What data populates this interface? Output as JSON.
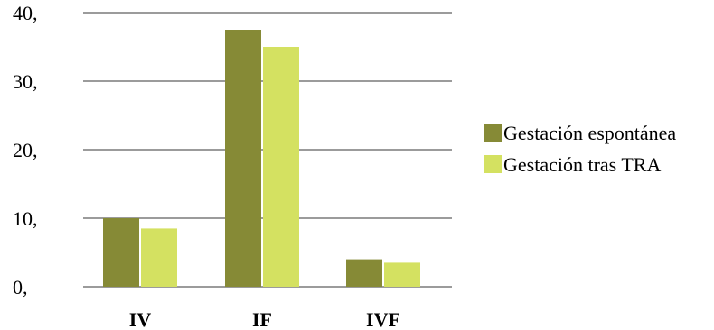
{
  "chart_data": {
    "type": "bar",
    "categories": [
      "IV",
      "IF",
      "IVF"
    ],
    "series": [
      {
        "name": "Gestación espontánea",
        "values": [
          10,
          37.5,
          4
        ],
        "color": "#868a36"
      },
      {
        "name": "Gestación tras TRA",
        "values": [
          8.5,
          35,
          3.5
        ],
        "color": "#d4e161"
      }
    ],
    "y_ticks": [
      "0,",
      "10,",
      "20,",
      "30,",
      "40,"
    ],
    "ylim": [
      0,
      40
    ],
    "grid": true,
    "legend_position": "right",
    "gridline_color": "#9b9b9b"
  }
}
